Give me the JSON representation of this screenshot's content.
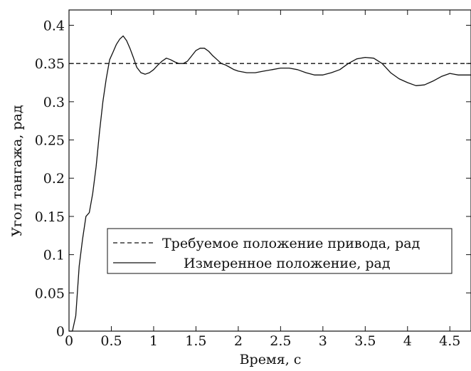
{
  "chart_data": {
    "type": "line",
    "xlabel": "Время, с",
    "ylabel": "Угол тангажа, рад",
    "xlim": [
      0,
      4.75
    ],
    "ylim": [
      0,
      0.42
    ],
    "xticks": [
      0,
      0.5,
      1,
      1.5,
      2,
      2.5,
      3,
      3.5,
      4,
      4.5
    ],
    "xtick_labels": [
      "0",
      "0.5",
      "1",
      "1.5",
      "2",
      "2.5",
      "3",
      "3.5",
      "4",
      "4.5"
    ],
    "yticks": [
      0,
      0.05,
      0.1,
      0.15,
      0.2,
      0.25,
      0.3,
      0.35,
      0.4
    ],
    "ytick_labels": [
      "0",
      "0.05",
      "0.1",
      "0.15",
      "0.2",
      "0.25",
      "0.3",
      "0.35",
      "0.4"
    ],
    "grid": false,
    "legend_position": "lower-center",
    "series": [
      {
        "name": "Требуемое положение привода, рад",
        "style": "dashed",
        "color": "#111111",
        "x": [
          0,
          4.75
        ],
        "y": [
          0.35,
          0.35
        ]
      },
      {
        "name": "Измеренное положение, рад",
        "style": "solid",
        "color": "#111111",
        "x": [
          0,
          0.04,
          0.08,
          0.12,
          0.16,
          0.2,
          0.24,
          0.28,
          0.32,
          0.36,
          0.4,
          0.44,
          0.48,
          0.52,
          0.56,
          0.6,
          0.64,
          0.68,
          0.72,
          0.76,
          0.8,
          0.85,
          0.9,
          0.95,
          1.0,
          1.05,
          1.1,
          1.15,
          1.2,
          1.25,
          1.3,
          1.35,
          1.4,
          1.45,
          1.5,
          1.55,
          1.6,
          1.65,
          1.7,
          1.75,
          1.8,
          1.85,
          1.9,
          1.95,
          2.0,
          2.1,
          2.2,
          2.3,
          2.4,
          2.5,
          2.6,
          2.7,
          2.8,
          2.9,
          3.0,
          3.1,
          3.2,
          3.3,
          3.4,
          3.5,
          3.6,
          3.7,
          3.8,
          3.9,
          4.0,
          4.1,
          4.2,
          4.3,
          4.4,
          4.5,
          4.6,
          4.7,
          4.75
        ],
        "y": [
          0.0,
          0.0,
          0.02,
          0.085,
          0.12,
          0.15,
          0.155,
          0.18,
          0.215,
          0.26,
          0.3,
          0.33,
          0.355,
          0.365,
          0.375,
          0.382,
          0.386,
          0.38,
          0.37,
          0.358,
          0.345,
          0.338,
          0.336,
          0.338,
          0.342,
          0.348,
          0.353,
          0.357,
          0.355,
          0.352,
          0.35,
          0.35,
          0.353,
          0.36,
          0.367,
          0.37,
          0.37,
          0.366,
          0.36,
          0.355,
          0.35,
          0.348,
          0.345,
          0.342,
          0.34,
          0.338,
          0.338,
          0.34,
          0.342,
          0.344,
          0.344,
          0.342,
          0.338,
          0.335,
          0.335,
          0.338,
          0.342,
          0.35,
          0.356,
          0.358,
          0.357,
          0.35,
          0.338,
          0.33,
          0.325,
          0.321,
          0.322,
          0.327,
          0.333,
          0.337,
          0.335,
          0.335,
          0.335
        ]
      }
    ]
  }
}
